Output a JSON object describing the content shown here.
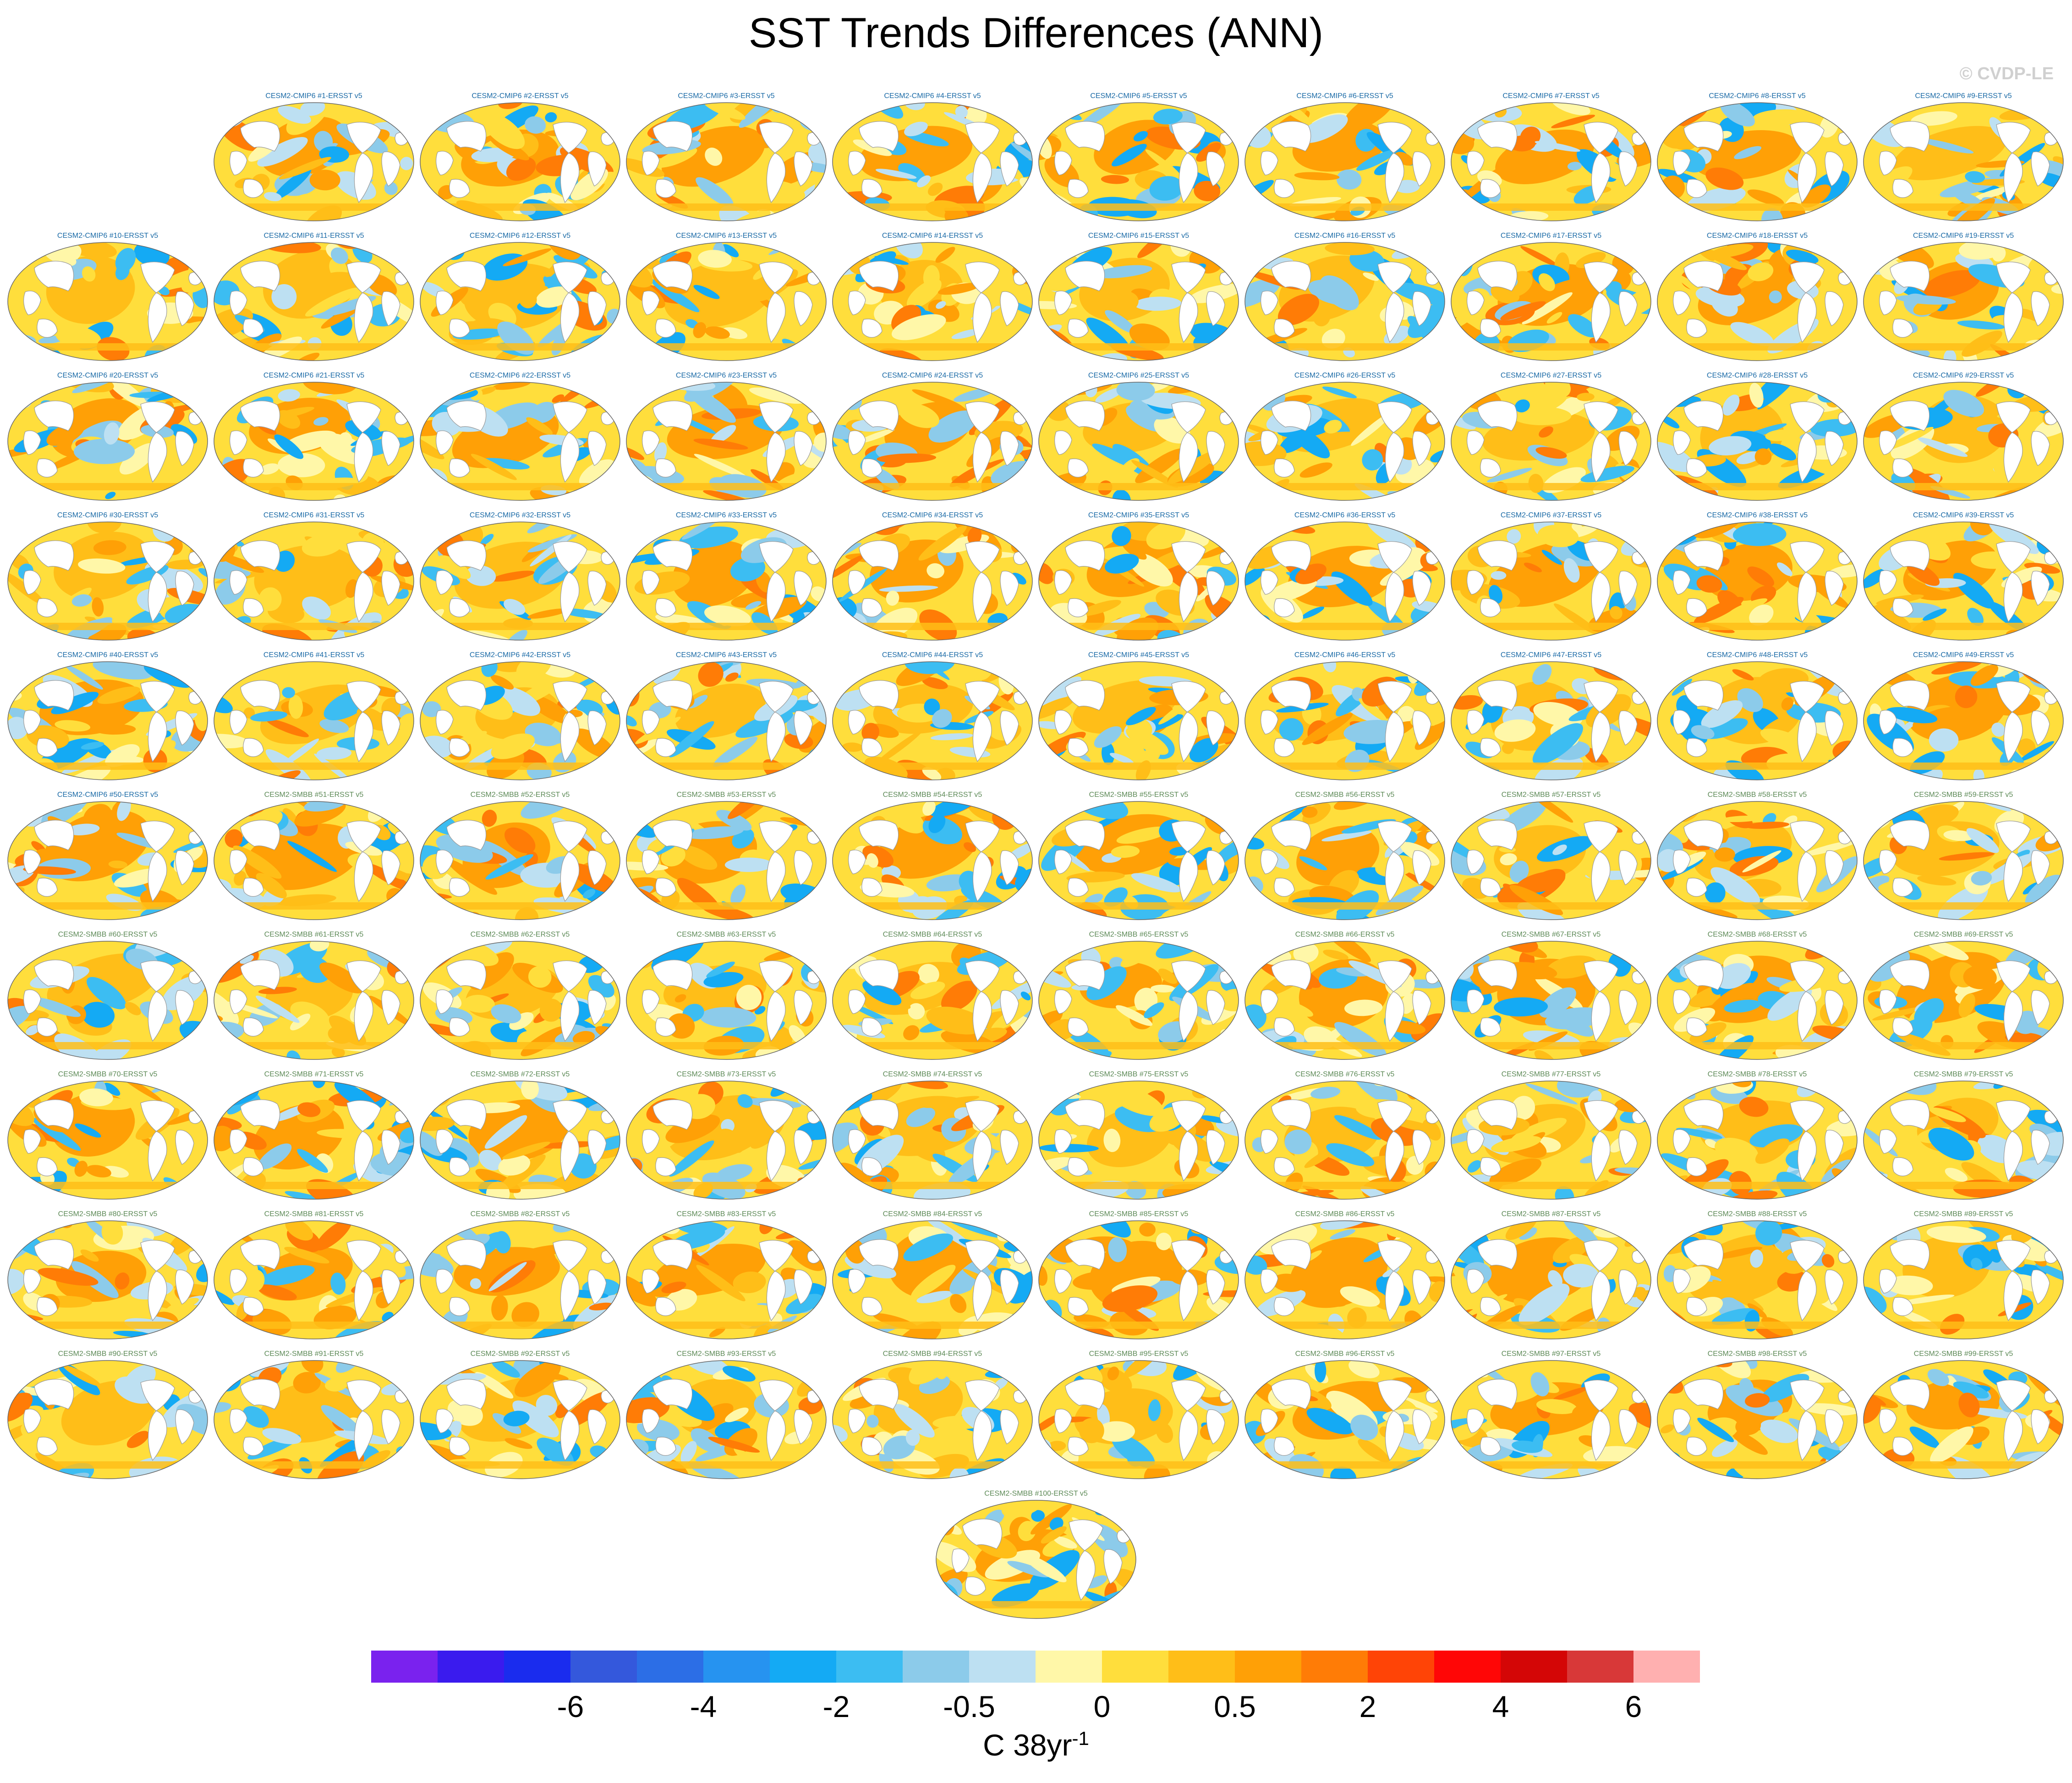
{
  "title": "SST Trends Differences (ANN)",
  "watermark": "© CVDP-LE",
  "colors": {
    "cmip6_title": "#1a6aa6",
    "smbb_title": "#5d8a57",
    "land": "#ffffff",
    "coast": "#999999"
  },
  "panels": [
    {
      "label": "CESM2-CMIP6 #1-ERSST v5",
      "group": "cmip6"
    },
    {
      "label": "CESM2-CMIP6 #2-ERSST v5",
      "group": "cmip6"
    },
    {
      "label": "CESM2-CMIP6 #3-ERSST v5",
      "group": "cmip6"
    },
    {
      "label": "CESM2-CMIP6 #4-ERSST v5",
      "group": "cmip6"
    },
    {
      "label": "CESM2-CMIP6 #5-ERSST v5",
      "group": "cmip6"
    },
    {
      "label": "CESM2-CMIP6 #6-ERSST v5",
      "group": "cmip6"
    },
    {
      "label": "CESM2-CMIP6 #7-ERSST v5",
      "group": "cmip6"
    },
    {
      "label": "CESM2-CMIP6 #8-ERSST v5",
      "group": "cmip6"
    },
    {
      "label": "CESM2-CMIP6 #9-ERSST v5",
      "group": "cmip6"
    },
    {
      "label": "CESM2-CMIP6 #10-ERSST v5",
      "group": "cmip6"
    },
    {
      "label": "CESM2-CMIP6 #11-ERSST v5",
      "group": "cmip6"
    },
    {
      "label": "CESM2-CMIP6 #12-ERSST v5",
      "group": "cmip6"
    },
    {
      "label": "CESM2-CMIP6 #13-ERSST v5",
      "group": "cmip6"
    },
    {
      "label": "CESM2-CMIP6 #14-ERSST v5",
      "group": "cmip6"
    },
    {
      "label": "CESM2-CMIP6 #15-ERSST v5",
      "group": "cmip6"
    },
    {
      "label": "CESM2-CMIP6 #16-ERSST v5",
      "group": "cmip6"
    },
    {
      "label": "CESM2-CMIP6 #17-ERSST v5",
      "group": "cmip6"
    },
    {
      "label": "CESM2-CMIP6 #18-ERSST v5",
      "group": "cmip6"
    },
    {
      "label": "CESM2-CMIP6 #19-ERSST v5",
      "group": "cmip6"
    },
    {
      "label": "CESM2-CMIP6 #20-ERSST v5",
      "group": "cmip6"
    },
    {
      "label": "CESM2-CMIP6 #21-ERSST v5",
      "group": "cmip6"
    },
    {
      "label": "CESM2-CMIP6 #22-ERSST v5",
      "group": "cmip6"
    },
    {
      "label": "CESM2-CMIP6 #23-ERSST v5",
      "group": "cmip6"
    },
    {
      "label": "CESM2-CMIP6 #24-ERSST v5",
      "group": "cmip6"
    },
    {
      "label": "CESM2-CMIP6 #25-ERSST v5",
      "group": "cmip6"
    },
    {
      "label": "CESM2-CMIP6 #26-ERSST v5",
      "group": "cmip6"
    },
    {
      "label": "CESM2-CMIP6 #27-ERSST v5",
      "group": "cmip6"
    },
    {
      "label": "CESM2-CMIP6 #28-ERSST v5",
      "group": "cmip6"
    },
    {
      "label": "CESM2-CMIP6 #29-ERSST v5",
      "group": "cmip6"
    },
    {
      "label": "CESM2-CMIP6 #30-ERSST v5",
      "group": "cmip6"
    },
    {
      "label": "CESM2-CMIP6 #31-ERSST v5",
      "group": "cmip6"
    },
    {
      "label": "CESM2-CMIP6 #32-ERSST v5",
      "group": "cmip6"
    },
    {
      "label": "CESM2-CMIP6 #33-ERSST v5",
      "group": "cmip6"
    },
    {
      "label": "CESM2-CMIP6 #34-ERSST v5",
      "group": "cmip6"
    },
    {
      "label": "CESM2-CMIP6 #35-ERSST v5",
      "group": "cmip6"
    },
    {
      "label": "CESM2-CMIP6 #36-ERSST v5",
      "group": "cmip6"
    },
    {
      "label": "CESM2-CMIP6 #37-ERSST v5",
      "group": "cmip6"
    },
    {
      "label": "CESM2-CMIP6 #38-ERSST v5",
      "group": "cmip6"
    },
    {
      "label": "CESM2-CMIP6 #39-ERSST v5",
      "group": "cmip6"
    },
    {
      "label": "CESM2-CMIP6 #40-ERSST v5",
      "group": "cmip6"
    },
    {
      "label": "CESM2-CMIP6 #41-ERSST v5",
      "group": "cmip6"
    },
    {
      "label": "CESM2-CMIP6 #42-ERSST v5",
      "group": "cmip6"
    },
    {
      "label": "CESM2-CMIP6 #43-ERSST v5",
      "group": "cmip6"
    },
    {
      "label": "CESM2-CMIP6 #44-ERSST v5",
      "group": "cmip6"
    },
    {
      "label": "CESM2-CMIP6 #45-ERSST v5",
      "group": "cmip6"
    },
    {
      "label": "CESM2-CMIP6 #46-ERSST v5",
      "group": "cmip6"
    },
    {
      "label": "CESM2-CMIP6 #47-ERSST v5",
      "group": "cmip6"
    },
    {
      "label": "CESM2-CMIP6 #48-ERSST v5",
      "group": "cmip6"
    },
    {
      "label": "CESM2-CMIP6 #49-ERSST v5",
      "group": "cmip6"
    },
    {
      "label": "CESM2-CMIP6 #50-ERSST v5",
      "group": "cmip6"
    },
    {
      "label": "CESM2-SMBB #51-ERSST v5",
      "group": "smbb"
    },
    {
      "label": "CESM2-SMBB #52-ERSST v5",
      "group": "smbb"
    },
    {
      "label": "CESM2-SMBB #53-ERSST v5",
      "group": "smbb"
    },
    {
      "label": "CESM2-SMBB #54-ERSST v5",
      "group": "smbb"
    },
    {
      "label": "CESM2-SMBB #55-ERSST v5",
      "group": "smbb"
    },
    {
      "label": "CESM2-SMBB #56-ERSST v5",
      "group": "smbb"
    },
    {
      "label": "CESM2-SMBB #57-ERSST v5",
      "group": "smbb"
    },
    {
      "label": "CESM2-SMBB #58-ERSST v5",
      "group": "smbb"
    },
    {
      "label": "CESM2-SMBB #59-ERSST v5",
      "group": "smbb"
    },
    {
      "label": "CESM2-SMBB #60-ERSST v5",
      "group": "smbb"
    },
    {
      "label": "CESM2-SMBB #61-ERSST v5",
      "group": "smbb"
    },
    {
      "label": "CESM2-SMBB #62-ERSST v5",
      "group": "smbb"
    },
    {
      "label": "CESM2-SMBB #63-ERSST v5",
      "group": "smbb"
    },
    {
      "label": "CESM2-SMBB #64-ERSST v5",
      "group": "smbb"
    },
    {
      "label": "CESM2-SMBB #65-ERSST v5",
      "group": "smbb"
    },
    {
      "label": "CESM2-SMBB #66-ERSST v5",
      "group": "smbb"
    },
    {
      "label": "CESM2-SMBB #67-ERSST v5",
      "group": "smbb"
    },
    {
      "label": "CESM2-SMBB #68-ERSST v5",
      "group": "smbb"
    },
    {
      "label": "CESM2-SMBB #69-ERSST v5",
      "group": "smbb"
    },
    {
      "label": "CESM2-SMBB #70-ERSST v5",
      "group": "smbb"
    },
    {
      "label": "CESM2-SMBB #71-ERSST v5",
      "group": "smbb"
    },
    {
      "label": "CESM2-SMBB #72-ERSST v5",
      "group": "smbb"
    },
    {
      "label": "CESM2-SMBB #73-ERSST v5",
      "group": "smbb"
    },
    {
      "label": "CESM2-SMBB #74-ERSST v5",
      "group": "smbb"
    },
    {
      "label": "CESM2-SMBB #75-ERSST v5",
      "group": "smbb"
    },
    {
      "label": "CESM2-SMBB #76-ERSST v5",
      "group": "smbb"
    },
    {
      "label": "CESM2-SMBB #77-ERSST v5",
      "group": "smbb"
    },
    {
      "label": "CESM2-SMBB #78-ERSST v5",
      "group": "smbb"
    },
    {
      "label": "CESM2-SMBB #79-ERSST v5",
      "group": "smbb"
    },
    {
      "label": "CESM2-SMBB #80-ERSST v5",
      "group": "smbb"
    },
    {
      "label": "CESM2-SMBB #81-ERSST v5",
      "group": "smbb"
    },
    {
      "label": "CESM2-SMBB #82-ERSST v5",
      "group": "smbb"
    },
    {
      "label": "CESM2-SMBB #83-ERSST v5",
      "group": "smbb"
    },
    {
      "label": "CESM2-SMBB #84-ERSST v5",
      "group": "smbb"
    },
    {
      "label": "CESM2-SMBB #85-ERSST v5",
      "group": "smbb"
    },
    {
      "label": "CESM2-SMBB #86-ERSST v5",
      "group": "smbb"
    },
    {
      "label": "CESM2-SMBB #87-ERSST v5",
      "group": "smbb"
    },
    {
      "label": "CESM2-SMBB #88-ERSST v5",
      "group": "smbb"
    },
    {
      "label": "CESM2-SMBB #89-ERSST v5",
      "group": "smbb"
    },
    {
      "label": "CESM2-SMBB #90-ERSST v5",
      "group": "smbb"
    },
    {
      "label": "CESM2-SMBB #91-ERSST v5",
      "group": "smbb"
    },
    {
      "label": "CESM2-SMBB #92-ERSST v5",
      "group": "smbb"
    },
    {
      "label": "CESM2-SMBB #93-ERSST v5",
      "group": "smbb"
    },
    {
      "label": "CESM2-SMBB #94-ERSST v5",
      "group": "smbb"
    },
    {
      "label": "CESM2-SMBB #95-ERSST v5",
      "group": "smbb"
    },
    {
      "label": "CESM2-SMBB #96-ERSST v5",
      "group": "smbb"
    },
    {
      "label": "CESM2-SMBB #97-ERSST v5",
      "group": "smbb"
    },
    {
      "label": "CESM2-SMBB #98-ERSST v5",
      "group": "smbb"
    },
    {
      "label": "CESM2-SMBB #99-ERSST v5",
      "group": "smbb"
    },
    {
      "label": "CESM2-SMBB #100-ERSST v5",
      "group": "smbb"
    }
  ],
  "colorbar": {
    "colors": [
      "#7a22ee",
      "#3a1bee",
      "#1a2cee",
      "#3458dc",
      "#2c6ee6",
      "#2693f0",
      "#14aaf4",
      "#3cbdf2",
      "#8ccbea",
      "#bde0f2",
      "#fff7a8",
      "#ffde3c",
      "#ffbe18",
      "#ffa006",
      "#ff7c06",
      "#ff4406",
      "#ff0606",
      "#d40606",
      "#d83838",
      "#ffb0b0"
    ],
    "tick_labels": [
      "-6",
      "-4",
      "-2",
      "-0.5",
      "0",
      "0.5",
      "2",
      "4",
      "6"
    ],
    "units_base": "C 38yr",
    "units_exp": "-1"
  }
}
